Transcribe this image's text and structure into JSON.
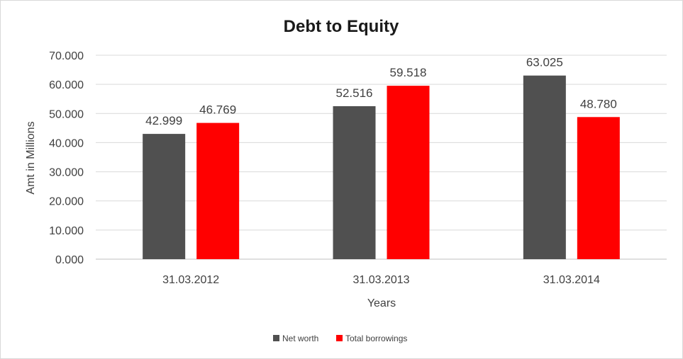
{
  "chart_data": {
    "type": "bar",
    "title": "Debt to Equity",
    "xlabel": "Years",
    "ylabel": "Amt in Millions",
    "categories": [
      "31.03.2012",
      "31.03.2013",
      "31.03.2014"
    ],
    "series": [
      {
        "name": "Net worth",
        "color": "#505050",
        "values": [
          42.999,
          52.516,
          63.025
        ],
        "labels": [
          "42.999",
          "52.516",
          "63.025"
        ]
      },
      {
        "name": "Total borrowings",
        "color": "#FF0000",
        "values": [
          46.769,
          59.518,
          48.78
        ],
        "labels": [
          "46.769",
          "59.518",
          "48.780"
        ]
      }
    ],
    "ylim": [
      0,
      70
    ],
    "yticks": [
      0,
      10,
      20,
      30,
      40,
      50,
      60,
      70
    ],
    "ytick_labels": [
      "0.000",
      "10.000",
      "20.000",
      "30.000",
      "40.000",
      "50.000",
      "60.000",
      "70.000"
    ],
    "grid": true,
    "legend_position": "bottom"
  }
}
